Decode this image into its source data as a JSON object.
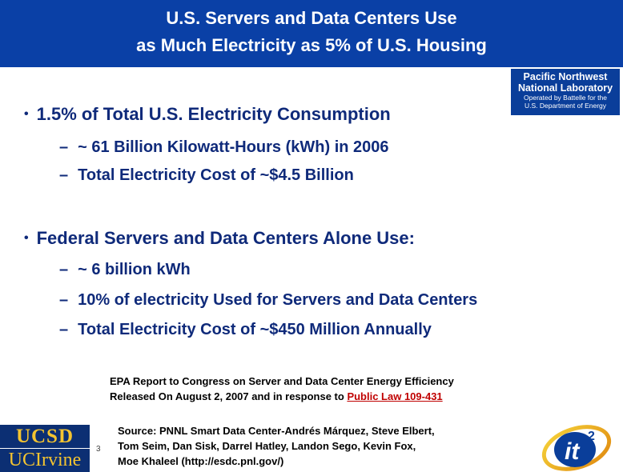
{
  "title": {
    "line1": "U.S. Servers and Data Centers Use",
    "line2": "as Much Electricity as 5% of U.S. Housing"
  },
  "pnnl_logo": {
    "line1": "Pacific Northwest",
    "line2": "National Laboratory",
    "line3": "Operated by Battelle for the",
    "line4": "U.S. Department of Energy"
  },
  "bullets": [
    {
      "text": "1.5% of Total U.S. Electricity Consumption",
      "subs": [
        "~ 61 Billion Kilowatt-Hours (kWh) in 2006",
        "Total Electricity Cost of ~$4.5 Billion"
      ]
    },
    {
      "text": "Federal Servers and Data Centers Alone Use:",
      "subs": [
        "~ 6 billion kWh",
        "10% of electricity Used for Servers and Data Centers",
        "Total Electricity Cost of ~$450 Million Annually"
      ]
    }
  ],
  "reference": {
    "line1": "EPA Report to Congress on Server and Data Center Energy Efficiency",
    "line2_prefix": "Released On August 2, 2007 and in response to ",
    "link": "Public Law 109-431"
  },
  "source": {
    "line1": "Source: PNNL Smart Data Center-Andrés Márquez, Steve Elbert,",
    "line2": "Tom Seim, Dan Sisk, Darrel Hatley, Landon Sego, Kevin Fox,",
    "line3": "Moe Khaleel   (http://esdc.pnl.gov/)"
  },
  "ucsd_logo": {
    "top": "UCSD",
    "bottom": "UCIrvine"
  },
  "it2_logo": {
    "text": "it",
    "sup": "2"
  },
  "page_number": "3",
  "colors": {
    "title_bg": "#0a40a6",
    "text": "#0f2a7a",
    "link": "#c00000"
  }
}
